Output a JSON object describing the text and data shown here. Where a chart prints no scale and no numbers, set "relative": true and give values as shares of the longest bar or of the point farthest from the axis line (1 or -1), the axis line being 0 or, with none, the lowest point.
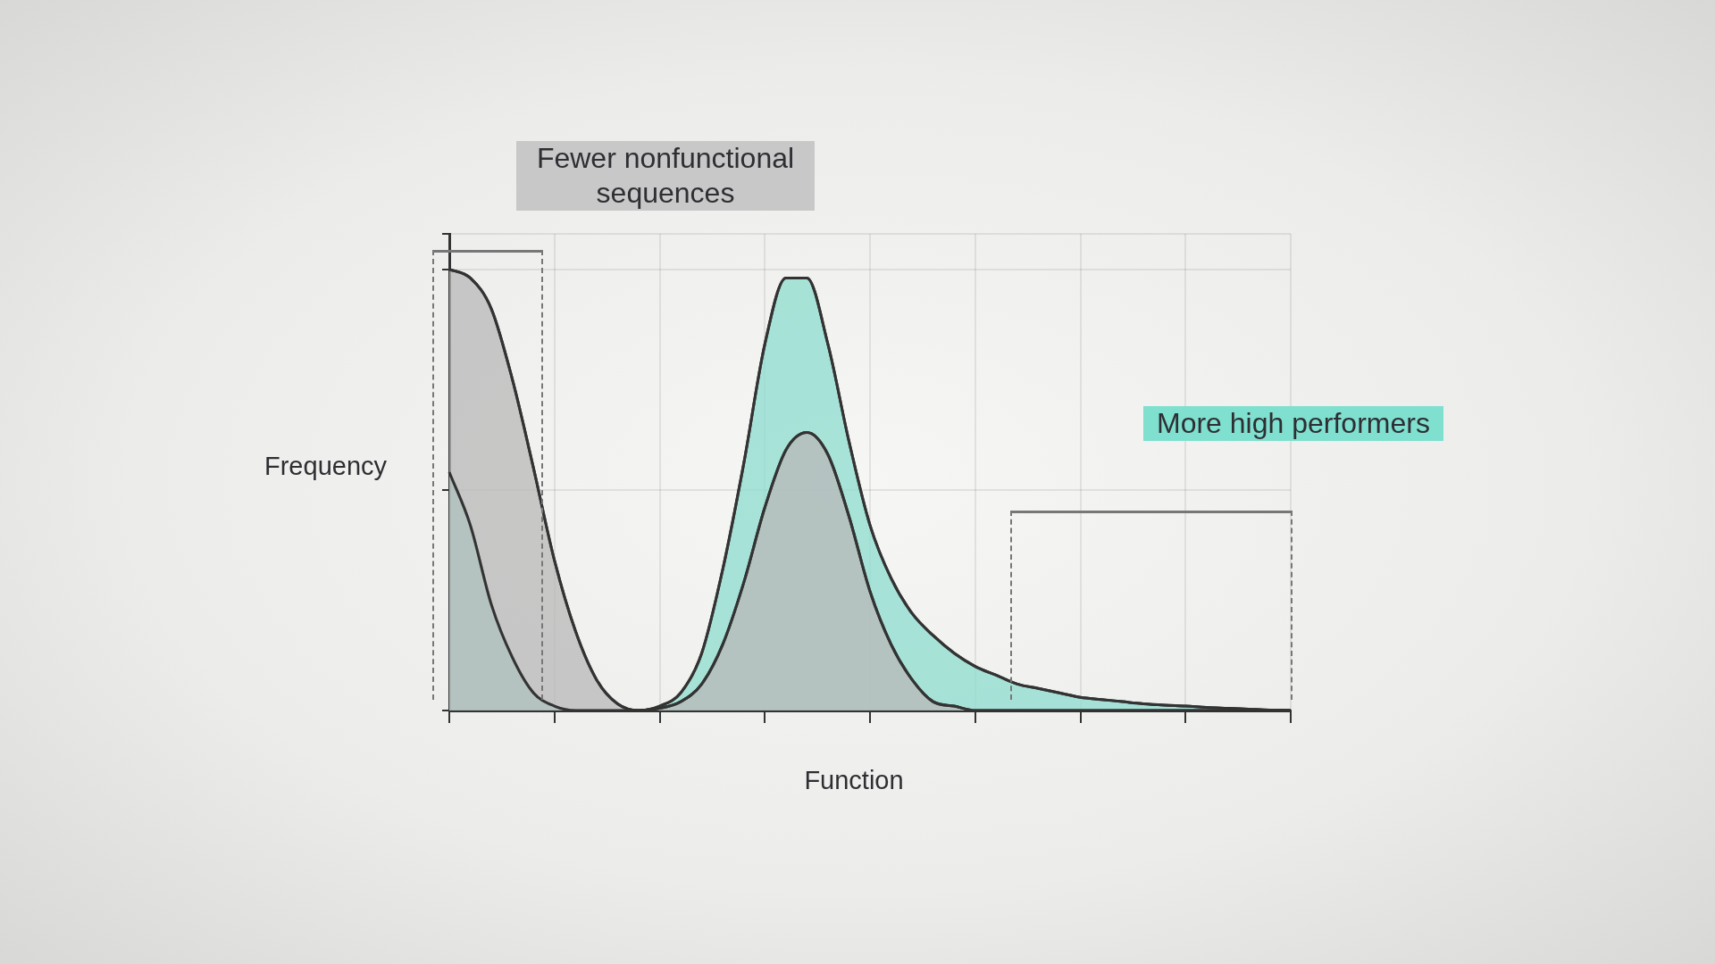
{
  "chart_data": {
    "type": "area",
    "relative": true,
    "xlabel": "Function",
    "ylabel": "Frequency",
    "grid": true,
    "marker": "none",
    "categories": [
      null,
      null,
      null,
      null,
      null,
      null,
      null,
      null,
      null,
      null,
      null,
      null,
      null,
      null,
      null,
      null,
      null,
      null,
      null,
      null,
      null,
      null,
      null,
      null,
      null,
      null,
      null,
      null,
      null,
      null,
      null,
      null,
      null,
      null,
      null,
      null,
      null,
      null,
      null,
      null,
      null
    ],
    "series": [
      {
        "color": "#b8b8b8",
        "values": [
          1,
          0.98,
          0.91,
          0.75,
          0.55,
          0.34,
          0.18,
          0.07,
          0.015,
          0,
          0.005,
          0.02,
          0.06,
          0.15,
          0.29,
          0.46,
          0.59,
          0.63,
          0.58,
          0.44,
          0.27,
          0.15,
          0.07,
          0.02,
          0.01,
          0,
          0,
          0,
          0,
          0,
          0,
          0,
          0,
          0,
          0,
          0,
          0,
          0,
          0,
          0,
          0
        ]
      },
      {
        "color": "#8ddccf",
        "values": [
          0.54,
          0.42,
          0.24,
          0.12,
          0.04,
          0.01,
          0,
          0,
          0,
          0,
          0.01,
          0.04,
          0.13,
          0.32,
          0.56,
          0.83,
          0.98,
          0.98,
          0.83,
          0.61,
          0.42,
          0.3,
          0.22,
          0.17,
          0.13,
          0.1,
          0.08,
          0.06,
          0.05,
          0.04,
          0.03,
          0.025,
          0.02,
          0.015,
          0.012,
          0.01,
          0.007,
          0.005,
          0.003,
          0.001,
          0
        ]
      }
    ],
    "annotations": [
      "Fewer nonfunctional sequences",
      "More high performers"
    ]
  }
}
